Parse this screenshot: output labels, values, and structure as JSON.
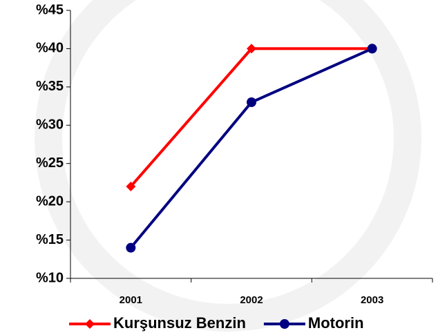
{
  "chart_data": {
    "type": "line",
    "categories": [
      "2001",
      "2002",
      "2003"
    ],
    "series": [
      {
        "name": "Kurşunsuz Benzin",
        "color": "#ff0000",
        "marker": "diamond",
        "values": [
          22,
          40,
          40
        ]
      },
      {
        "name": "Motorin",
        "color": "#000080",
        "marker": "circle",
        "values": [
          14,
          33,
          40
        ]
      }
    ],
    "ylim": [
      10,
      45
    ],
    "yticks": [
      {
        "value": 10,
        "label": "%10"
      },
      {
        "value": 15,
        "label": "%15"
      },
      {
        "value": 20,
        "label": "%20"
      },
      {
        "value": 25,
        "label": "%25"
      },
      {
        "value": 30,
        "label": "%30"
      },
      {
        "value": 35,
        "label": "%35"
      },
      {
        "value": 40,
        "label": "%40"
      },
      {
        "value": 45,
        "label": "%45"
      }
    ],
    "grid": false,
    "legend": "bottom"
  }
}
